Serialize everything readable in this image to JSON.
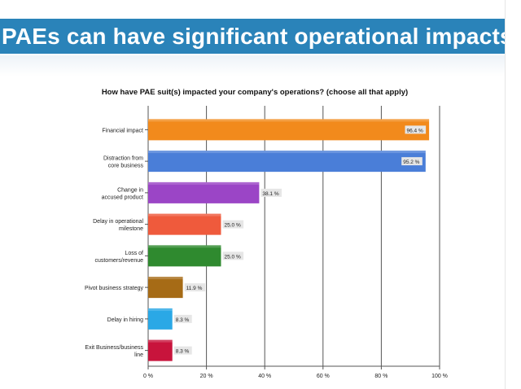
{
  "slide": {
    "title": "PAEs can have significant operational impacts"
  },
  "chart_data": {
    "type": "bar",
    "orientation": "horizontal",
    "title": "How have PAE suit(s) impacted your company's operations?  (choose all that apply)",
    "xlabel": "",
    "ylabel": "",
    "categories": [
      [
        "Financial impact"
      ],
      [
        "Distraction from",
        "core business"
      ],
      [
        "Change in",
        "accused product"
      ],
      [
        "Delay in operational",
        "milestone"
      ],
      [
        "Loss of",
        "customers/revenue"
      ],
      [
        "Pivot business strategy"
      ],
      [
        "Delay in hiring"
      ],
      [
        "Exit Business/business",
        "line"
      ]
    ],
    "values": [
      96.4,
      95.2,
      38.1,
      25.0,
      25.0,
      11.9,
      8.3,
      8.3
    ],
    "value_labels": [
      "96.4 %",
      "95.2 %",
      "38.1 %",
      "25.0 %",
      "25.0 %",
      "11.9 %",
      "8.3 %",
      "8.3 %"
    ],
    "colors": [
      "#f28a1c",
      "#4a7ed8",
      "#9b45c6",
      "#ef5a3c",
      "#2f8a2f",
      "#a66b16",
      "#2aa8e6",
      "#c8143c"
    ],
    "xlim": [
      0,
      100
    ],
    "xticks": [
      0,
      20,
      40,
      60,
      80,
      100
    ],
    "xtick_labels": [
      "0 %",
      "20 %",
      "40 %",
      "60 %",
      "80 %",
      "100 %"
    ],
    "grid": true
  }
}
